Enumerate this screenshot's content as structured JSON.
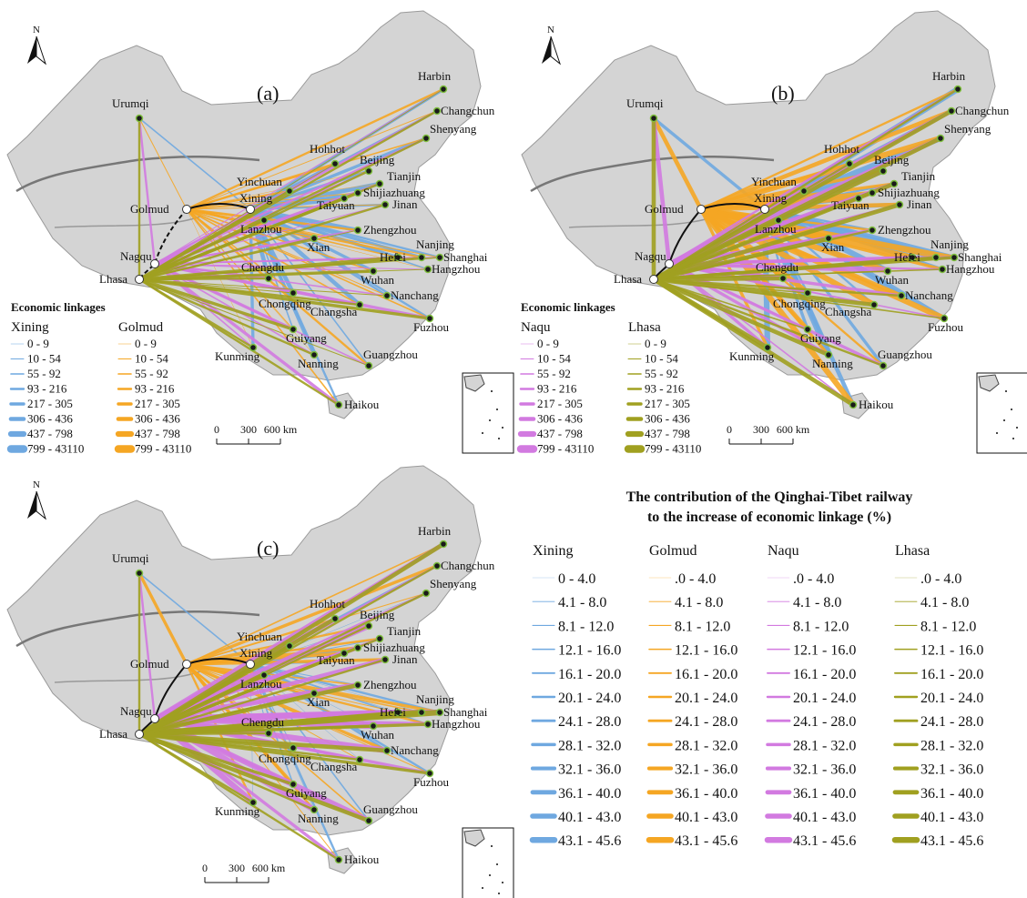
{
  "north_label": "N",
  "panels": [
    {
      "id": "a",
      "label": "(a)"
    },
    {
      "id": "b",
      "label": "(b)"
    },
    {
      "id": "c",
      "label": "(c)"
    }
  ],
  "colors": {
    "xining": "#6fa8e0",
    "golmud": "#f5a623",
    "naqu": "#d27ae0",
    "lhasa": "#a0a020",
    "land": "#d4d4d4",
    "railway": "#111111"
  },
  "cities": [
    "Urumqi",
    "Golmud",
    "Nagqu",
    "Lhasa",
    "Xining",
    "Lanzhou",
    "Yinchuan",
    "Hohhot",
    "Beijing",
    "Tianjin",
    "Shijiazhuang",
    "Taiyuan",
    "Jinan",
    "Zhengzhou",
    "Xian",
    "Nanjing",
    "Shanghai",
    "Hefei",
    "Hangzhou",
    "Wuhan",
    "Chengdu",
    "Chongqing",
    "Changsha",
    "Nanchang",
    "Fuzhou",
    "Guiyang",
    "Kunming",
    "Nanning",
    "Guangzhou",
    "Haikou",
    "Harbin",
    "Changchun",
    "Shenyang"
  ],
  "legend_a": {
    "title": "Economic linkages",
    "col1_header": "Xining",
    "col2_header": "Golmud",
    "classes": [
      "0 - 9",
      "10 - 54",
      "55 - 92",
      "93 - 216",
      "217 - 305",
      "306 - 436",
      "437 - 798",
      "799 - 43110"
    ]
  },
  "legend_b": {
    "title": "Economic linkages",
    "col1_header": "Naqu",
    "col2_header": "Lhasa",
    "classes": [
      "0 - 9",
      "10 - 54",
      "55 - 92",
      "93 - 216",
      "217 - 305",
      "306 - 436",
      "437 - 798",
      "799 - 43110"
    ]
  },
  "scalebar": {
    "t0": "0",
    "t1": "300",
    "t2": "600 km"
  },
  "legend_c": {
    "title_line1": "The contribution of the Qinghai-Tibet railway",
    "title_line2": "to the  increase of economic linkage (%)",
    "headers": [
      "Xining",
      "Golmud",
      "Naqu",
      "Lhasa"
    ],
    "col1": [
      "0 - 4.0",
      "4.1 - 8.0",
      "8.1 - 12.0",
      "12.1 - 16.0",
      "16.1 - 20.0",
      "20.1 - 24.0",
      "24.1 - 28.0",
      "28.1 - 32.0",
      "32.1 - 36.0",
      "36.1 - 40.0",
      "40.1 - 43.0",
      "43.1 - 45.6"
    ],
    "col_other": [
      ".0 - 4.0",
      "4.1 - 8.0",
      "8.1 - 12.0",
      "12.1 - 16.0",
      "16.1 - 20.0",
      "20.1 - 24.0",
      "24.1 - 28.0",
      "28.1 - 32.0",
      "32.1 - 36.0",
      "36.1 - 40.0",
      "40.1 - 43.0",
      "43.1 - 45.6"
    ]
  }
}
